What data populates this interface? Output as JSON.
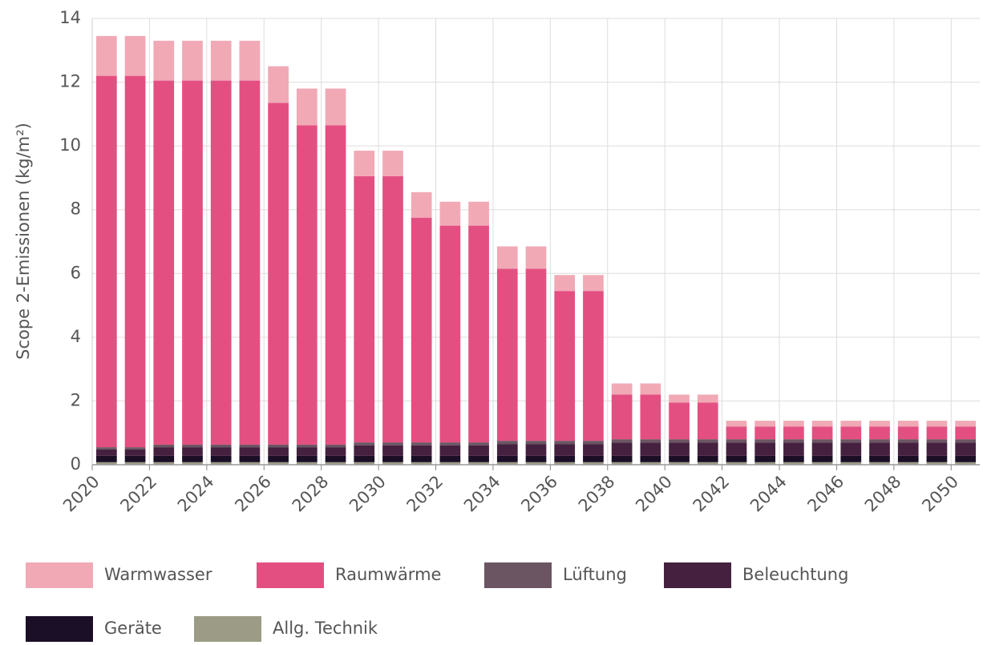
{
  "chart_data": {
    "type": "stacked_bar",
    "y_label": "Scope 2-Emissionen (kg/m²)",
    "categories": [
      "2020",
      null,
      "2022",
      null,
      "2024",
      null,
      "2026",
      null,
      "2028",
      null,
      "2030",
      null,
      "2032",
      null,
      "2034",
      null,
      "2036",
      null,
      "2038",
      null,
      "2040",
      null,
      "2042",
      null,
      "2044",
      null,
      "2046",
      null,
      "2048",
      null,
      "2050"
    ],
    "series": [
      {
        "name": "Warmwasser",
        "color": "#f1a9b6",
        "values": [
          1.25,
          1.25,
          1.25,
          1.25,
          1.25,
          1.25,
          1.15,
          1.15,
          1.15,
          0.8,
          0.8,
          0.8,
          0.75,
          0.75,
          0.7,
          0.7,
          0.5,
          0.5,
          0.35,
          0.35,
          0.25,
          0.25,
          0.18,
          0.18,
          0.18,
          0.18,
          0.18,
          0.18,
          0.18,
          0.18,
          0.18
        ]
      },
      {
        "name": "Raumwärme",
        "color": "#e44f81",
        "values": [
          11.65,
          11.65,
          11.42,
          11.42,
          11.42,
          11.42,
          10.72,
          10.02,
          10.02,
          8.35,
          8.35,
          7.05,
          6.8,
          6.8,
          5.4,
          5.4,
          4.7,
          4.7,
          1.4,
          1.4,
          1.15,
          1.15,
          0.4,
          0.4,
          0.4,
          0.4,
          0.4,
          0.4,
          0.4,
          0.4,
          0.4
        ]
      },
      {
        "name": "Lüftung",
        "color": "#6b5563",
        "values": [
          0.07,
          0.07,
          0.08,
          0.08,
          0.08,
          0.08,
          0.08,
          0.08,
          0.08,
          0.09,
          0.09,
          0.09,
          0.09,
          0.09,
          0.1,
          0.1,
          0.1,
          0.1,
          0.11,
          0.11,
          0.11,
          0.11,
          0.11,
          0.11,
          0.11,
          0.11,
          0.11,
          0.11,
          0.11,
          0.11,
          0.11
        ]
      },
      {
        "name": "Beleuchtung",
        "color": "#45213f",
        "values": [
          0.2,
          0.2,
          0.27,
          0.27,
          0.27,
          0.27,
          0.27,
          0.27,
          0.27,
          0.33,
          0.33,
          0.33,
          0.33,
          0.33,
          0.37,
          0.37,
          0.37,
          0.37,
          0.41,
          0.41,
          0.41,
          0.41,
          0.41,
          0.41,
          0.41,
          0.41,
          0.41,
          0.41,
          0.41,
          0.41,
          0.41
        ]
      },
      {
        "name": "Geräte",
        "color": "#1b0e27",
        "values": [
          0.2,
          0.2,
          0.2,
          0.2,
          0.2,
          0.2,
          0.2,
          0.2,
          0.2,
          0.2,
          0.2,
          0.2,
          0.2,
          0.2,
          0.2,
          0.2,
          0.2,
          0.2,
          0.2,
          0.2,
          0.2,
          0.2,
          0.2,
          0.2,
          0.2,
          0.2,
          0.2,
          0.2,
          0.2,
          0.2,
          0.2
        ]
      },
      {
        "name": "Allg. Technik",
        "color": "#9c9c86",
        "values": [
          0.08,
          0.08,
          0.08,
          0.08,
          0.08,
          0.08,
          0.08,
          0.08,
          0.08,
          0.08,
          0.08,
          0.08,
          0.08,
          0.08,
          0.08,
          0.08,
          0.08,
          0.08,
          0.08,
          0.08,
          0.08,
          0.08,
          0.08,
          0.08,
          0.08,
          0.08,
          0.08,
          0.08,
          0.08,
          0.08,
          0.08
        ]
      }
    ],
    "ylim": [
      0,
      14
    ],
    "yticks": [
      0,
      2,
      4,
      6,
      8,
      10,
      12,
      14
    ],
    "grid": true
  }
}
